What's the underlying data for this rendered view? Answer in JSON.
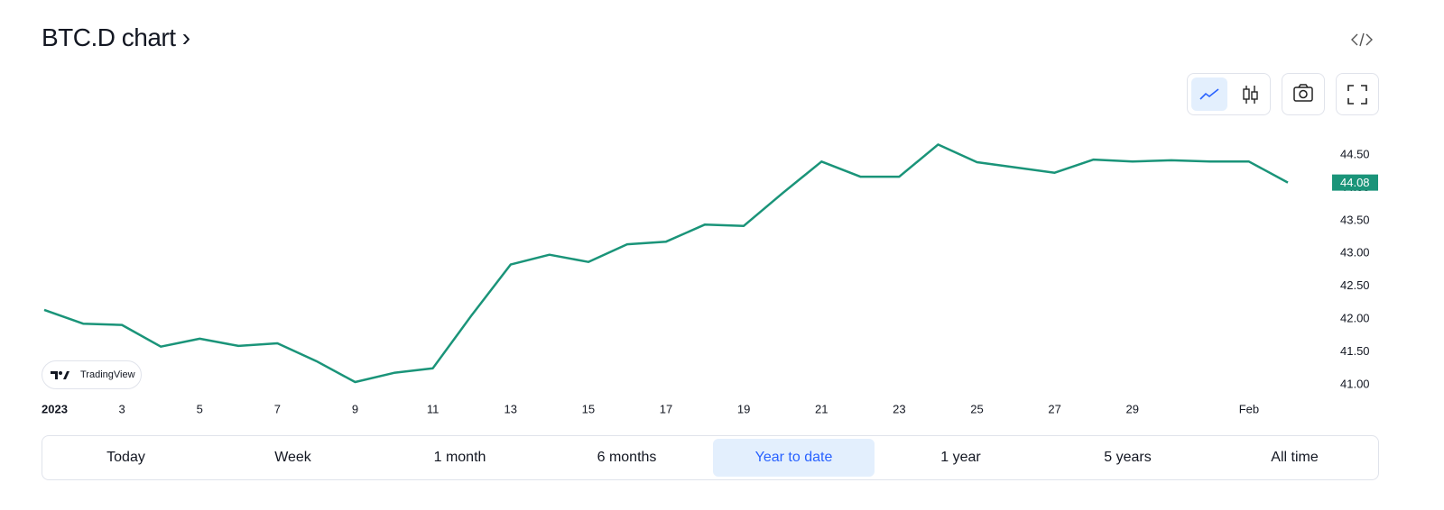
{
  "header": {
    "title": "BTC.D chart ›"
  },
  "watermark": "TradingView",
  "chart_data": {
    "type": "line",
    "color": "#1a9479",
    "x": [
      1,
      2,
      3,
      4,
      5,
      6,
      7,
      8,
      9,
      10,
      11,
      12,
      13,
      14,
      15,
      16,
      17,
      18,
      19,
      20,
      21,
      22,
      23,
      24,
      25,
      26,
      27,
      28,
      29,
      30,
      31,
      32,
      33
    ],
    "values": [
      42.14,
      41.93,
      41.91,
      41.58,
      41.7,
      41.59,
      41.63,
      41.36,
      41.04,
      41.18,
      41.25,
      42.06,
      42.83,
      42.98,
      42.87,
      43.14,
      43.18,
      43.44,
      43.42,
      43.92,
      44.4,
      44.17,
      44.17,
      44.66,
      44.39,
      44.31,
      44.23,
      44.43,
      44.4,
      44.42,
      44.4,
      44.4,
      44.08
    ],
    "xlim": [
      1,
      33
    ],
    "xticks": [
      {
        "value": 1,
        "label": "2023"
      },
      3,
      5,
      7,
      9,
      11,
      13,
      15,
      17,
      19,
      21,
      23,
      25,
      27,
      29,
      {
        "value": 32,
        "label": "Feb"
      }
    ],
    "ylim": [
      40.82,
      44.94
    ],
    "yticks": [
      {
        "value": 41,
        "label": "41.00"
      },
      {
        "value": 41.5,
        "label": "41.50"
      },
      {
        "value": 42,
        "label": "42.00"
      },
      {
        "value": 42.5,
        "label": "42.50"
      },
      {
        "value": 43,
        "label": "43.00"
      },
      {
        "value": 43.5,
        "label": "43.50"
      },
      {
        "value": 44,
        "label": "44.00"
      },
      {
        "value": 44.5,
        "label": "44.50"
      }
    ]
  },
  "range_buttons": [
    "Today",
    "Week",
    "1 month",
    "6 months",
    "Year to date",
    "1 year",
    "5 years",
    "All time"
  ]
}
